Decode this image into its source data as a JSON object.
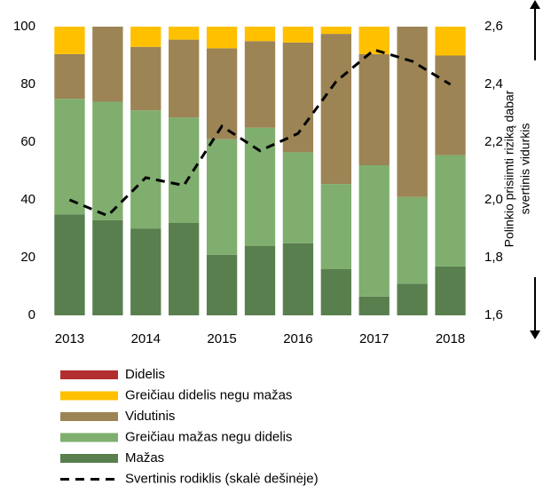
{
  "chart_data": {
    "type": "bar",
    "stacked": true,
    "categories": [
      "2013",
      null,
      "2014",
      null,
      "2015",
      null,
      "2016",
      null,
      "2017",
      null,
      "2018"
    ],
    "series": [
      {
        "name": "Didelis",
        "color": "#b22f2f",
        "values": [
          0,
          0,
          0,
          0,
          0,
          0,
          0,
          0,
          0,
          0,
          0
        ]
      },
      {
        "name": "Greičiau didelis negu mažas",
        "color": "#ffc000",
        "values": [
          9.5,
          0,
          7,
          4.5,
          7.5,
          5,
          5.5,
          2.5,
          9.5,
          0,
          10
        ]
      },
      {
        "name": "Vidutinis",
        "color": "#9c8455",
        "values": [
          15.5,
          26,
          22,
          27,
          31.5,
          30,
          38,
          52,
          38.5,
          59,
          34.5
        ]
      },
      {
        "name": "Greičiau mažas negu didelis",
        "color": "#7fae6e",
        "values": [
          40,
          41,
          41,
          36.5,
          40,
          41,
          31.5,
          29.5,
          45.5,
          30,
          38.5
        ]
      },
      {
        "name": "Mažas",
        "color": "#5a7f4e",
        "values": [
          35,
          33,
          30,
          32,
          21,
          24,
          25,
          16,
          6.5,
          11,
          17
        ]
      },
      {
        "name": "Svertinis rodiklis (skalė dešinėje)",
        "color": "#000000",
        "type": "line",
        "dashed": true,
        "axis": "y2",
        "values": [
          2.0,
          1.945,
          2.077,
          2.05,
          2.255,
          2.17,
          2.23,
          2.41,
          2.52,
          2.48,
          2.4
        ]
      }
    ],
    "ylim": [
      0,
      100
    ],
    "yticks": [
      0,
      20,
      40,
      60,
      80,
      100
    ],
    "y2lim": [
      1.6,
      2.6
    ],
    "y2ticks": [
      {
        "value": 1.6,
        "label": "1,6"
      },
      {
        "value": 1.8,
        "label": "1,8"
      },
      {
        "value": 2.0,
        "label": "2,0"
      },
      {
        "value": 2.2,
        "label": "2,2"
      },
      {
        "value": 2.4,
        "label": "2,4"
      },
      {
        "value": 2.6,
        "label": "2,6"
      }
    ],
    "y2_label": [
      "Polinkio prisiimti riziką dabar",
      "svertinis vidurkis"
    ],
    "grid": false,
    "legend": "bottom"
  }
}
